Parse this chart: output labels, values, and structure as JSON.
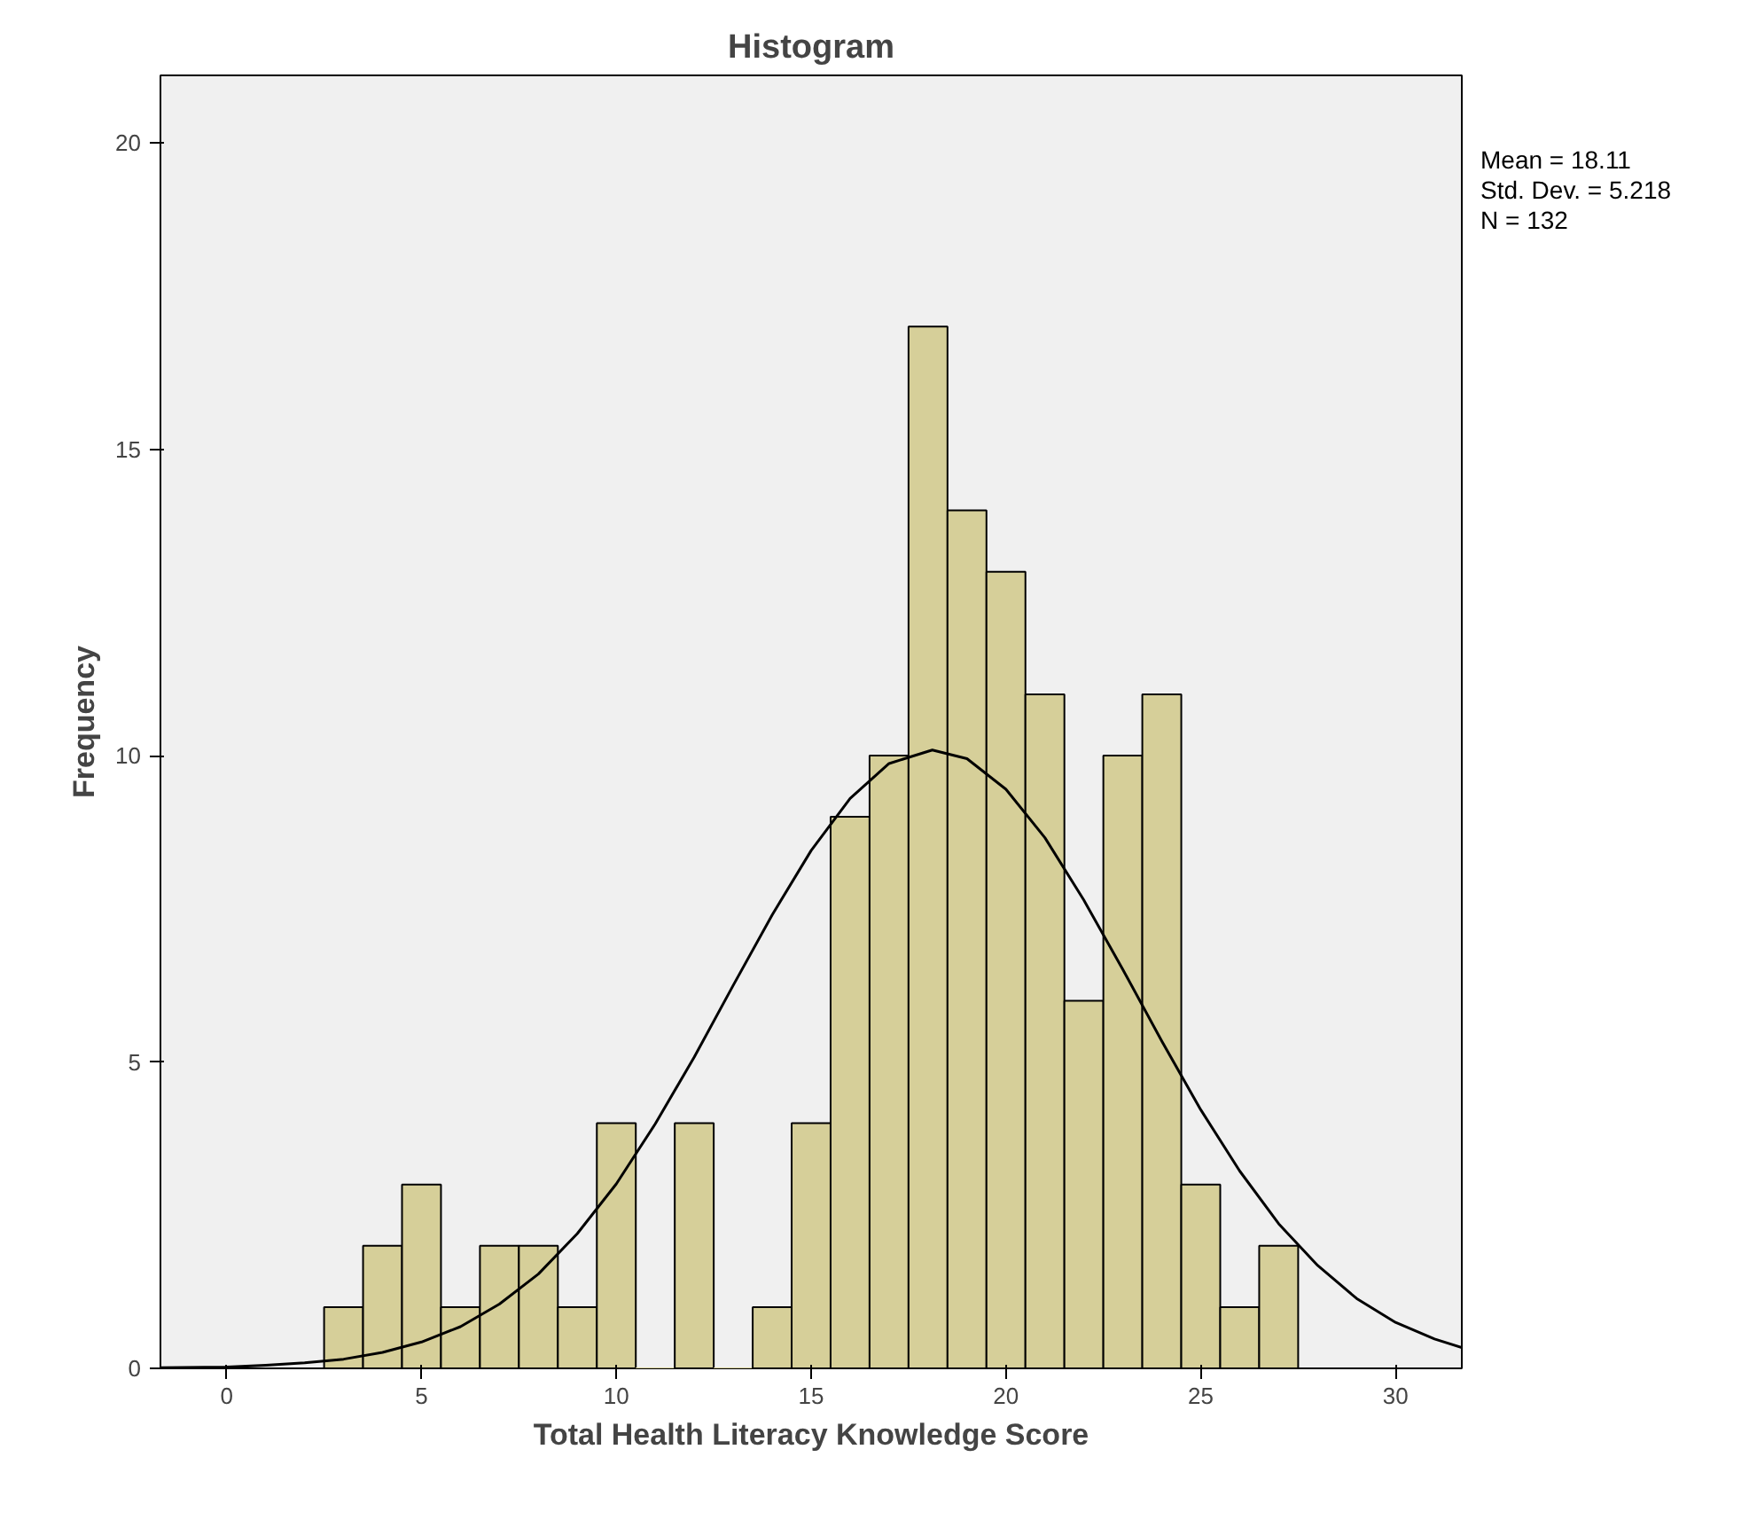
{
  "chart_data": {
    "type": "histogram",
    "title": "Histogram",
    "xlabel": "Total Health Literacy Knowledge Score",
    "ylabel": "Frequency",
    "annotations": [
      "Mean = 18.11",
      "Std. Dev. = 5.218",
      "N = 132"
    ],
    "series": [
      {
        "color": "#d6cf99",
        "bins": [
          2.5,
          3.5,
          4.5,
          5.5,
          6.5,
          7.5,
          8.5,
          9.5,
          10.5,
          11.5,
          12.5,
          13.5,
          14.5,
          15.5,
          16.5,
          17.5,
          18.5,
          19.5,
          20.5,
          21.5,
          22.5,
          23.5,
          24.5,
          25.5,
          26.5,
          27.5
        ],
        "values": [
          1,
          2,
          3,
          1,
          2,
          2,
          1,
          4,
          0,
          4,
          0,
          1,
          4,
          9,
          10,
          17,
          14,
          13,
          11,
          6,
          10,
          11,
          3,
          1,
          2
        ]
      },
      {
        "type": "line",
        "color": "#000000",
        "x": [
          -1.7,
          0,
          1,
          2,
          3,
          4,
          5,
          6,
          7,
          8,
          9,
          10,
          11,
          12,
          13,
          14,
          15,
          16,
          17,
          18.11,
          19,
          20,
          21,
          22,
          23,
          24,
          25,
          26,
          27,
          28,
          29,
          30,
          31,
          31.7
        ],
        "values": [
          0.01,
          0.02,
          0.05,
          0.09,
          0.15,
          0.26,
          0.43,
          0.68,
          1.05,
          1.54,
          2.2,
          3.01,
          3.99,
          5.08,
          6.25,
          7.4,
          8.45,
          9.3,
          9.87,
          10.09,
          9.95,
          9.45,
          8.66,
          7.64,
          6.51,
          5.34,
          4.22,
          3.22,
          2.36,
          1.68,
          1.14,
          0.75,
          0.48,
          0.34
        ]
      }
    ],
    "xlim": [
      -1.7,
      31.7
    ],
    "ylim": [
      0,
      21.1
    ],
    "xticks": [
      0,
      5,
      10,
      15,
      20,
      25,
      30
    ],
    "yticks": [
      0,
      5,
      10,
      15,
      20
    ],
    "grid": false
  }
}
